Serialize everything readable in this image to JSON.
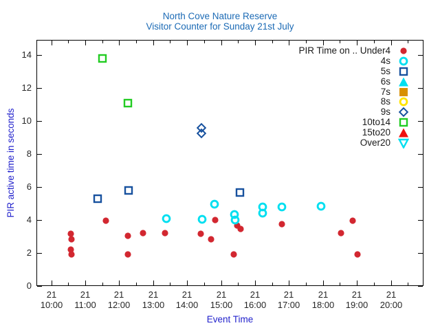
{
  "title": {
    "line1": "North Cove Nature Reserve",
    "line2": "Visitor Counter for Sunday 21st July"
  },
  "colors": {
    "title_text": "#1b6ab5",
    "axis_label_text": "#2222cc",
    "tick_label_text": "#262626",
    "plot_border": "#000000",
    "under4_red": "#d22730",
    "cyan": "#00dff0",
    "navy": "#17519e",
    "orange": "#d89000",
    "yellow": "#ffe400",
    "green": "#22cc22",
    "bright_red": "#ee1111"
  },
  "chart_data": {
    "type": "scatter",
    "title": "North Cove Nature Reserve",
    "subtitle": "Visitor Counter for Sunday 21st July",
    "xlabel": "Event Time",
    "ylabel": "PIR active time in seconds",
    "x_tick_day": "21",
    "x_tick_times": [
      "10:00",
      "11:00",
      "12:00",
      "13:00",
      "14:00",
      "15:00",
      "16:00",
      "17:00",
      "18:00",
      "19:00",
      "20:00"
    ],
    "x_minor_tick_interval_hours": 0.5,
    "x_range_hours": [
      "09:34",
      "20:58"
    ],
    "y_ticks": [
      0,
      2,
      4,
      6,
      8,
      10,
      12,
      14
    ],
    "ylim": [
      0,
      14.9
    ],
    "grid": "off",
    "legend_position": "top-right-inside",
    "legend_title": "PIR Time on ..",
    "series": [
      {
        "name": "Under4",
        "marker": "circle-filled",
        "color": "#d22730",
        "points": [
          [
            "10:35",
            3.15
          ],
          [
            "10:36",
            2.85
          ],
          [
            "10:35",
            2.2
          ],
          [
            "10:36",
            1.9
          ],
          [
            "11:37",
            3.95
          ],
          [
            "12:15",
            3.05
          ],
          [
            "12:15",
            1.9
          ],
          [
            "12:42",
            3.2
          ],
          [
            "13:21",
            3.2
          ],
          [
            "14:24",
            3.15
          ],
          [
            "14:42",
            2.85
          ],
          [
            "14:50",
            4.0
          ],
          [
            "15:22",
            1.9
          ],
          [
            "15:29",
            3.65
          ],
          [
            "15:35",
            3.45
          ],
          [
            "16:47",
            3.75
          ],
          [
            "18:32",
            3.2
          ],
          [
            "18:52",
            3.95
          ],
          [
            "19:01",
            1.9
          ]
        ]
      },
      {
        "name": "4s",
        "marker": "circle-open",
        "color": "#00dff0",
        "points": [
          [
            "13:23",
            4.1
          ],
          [
            "14:26",
            4.05
          ],
          [
            "14:49",
            4.95
          ],
          [
            "15:24",
            4.35
          ],
          [
            "15:25",
            4.0
          ],
          [
            "16:14",
            4.8
          ],
          [
            "16:14",
            4.4
          ],
          [
            "16:48",
            4.8
          ],
          [
            "17:57",
            4.85
          ]
        ]
      },
      {
        "name": "5s",
        "marker": "square-open",
        "color": "#17519e",
        "points": [
          [
            "11:22",
            5.3
          ],
          [
            "12:17",
            5.8
          ],
          [
            "15:33",
            5.65
          ]
        ]
      },
      {
        "name": "6s",
        "marker": "triangle-up-filled",
        "color": "#00dff0",
        "points": []
      },
      {
        "name": "7s",
        "marker": "square-filled",
        "color": "#d89000",
        "points": []
      },
      {
        "name": "8s",
        "marker": "circle-open",
        "color": "#ffe400",
        "points": []
      },
      {
        "name": "9s",
        "marker": "diamond-open",
        "color": "#17519e",
        "points": [
          [
            "14:25",
            9.6
          ],
          [
            "14:25",
            9.25
          ]
        ]
      },
      {
        "name": "10to14",
        "marker": "square-open",
        "color": "#22cc22",
        "points": [
          [
            "11:30",
            13.8
          ],
          [
            "12:16",
            11.1
          ]
        ]
      },
      {
        "name": "15to20",
        "marker": "triangle-up-filled",
        "color": "#ee1111",
        "points": []
      },
      {
        "name": "Over20",
        "marker": "triangle-down-open",
        "color": "#00dff0",
        "points": []
      }
    ]
  }
}
